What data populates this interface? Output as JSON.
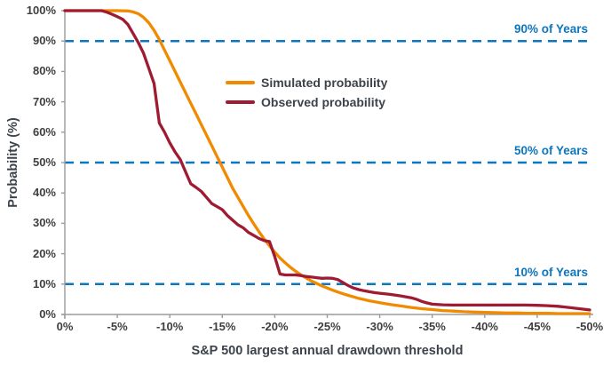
{
  "colors": {
    "simulated_orange": "#F18A00",
    "observed_red": "#9E1B32",
    "reference_blue": "#0E76BC",
    "axis_line_gray": "#9B9B9B",
    "tick_text": "#404040",
    "title_text": "#3C434B"
  },
  "chart_data": {
    "type": "line",
    "title": "",
    "xlabel": "S&P 500 largest annual drawdown threshold",
    "ylabel": "Probability (%)",
    "xlim": [
      0,
      -50
    ],
    "ylim": [
      0,
      100
    ],
    "grid": false,
    "legend_position": "upper-middle",
    "x_ticks": [
      "0%",
      "-5%",
      "-10%",
      "-15%",
      "-20%",
      "-25%",
      "-30%",
      "-35%",
      "-40%",
      "-45%",
      "-50%"
    ],
    "x_tick_values": [
      0,
      -5,
      -10,
      -15,
      -20,
      -25,
      -30,
      -35,
      -40,
      -45,
      -50
    ],
    "y_ticks": [
      "100%",
      "90%",
      "80%",
      "70%",
      "60%",
      "50%",
      "40%",
      "30%",
      "20%",
      "10%",
      "0%"
    ],
    "y_tick_values": [
      100,
      90,
      80,
      70,
      60,
      50,
      40,
      30,
      20,
      10,
      0
    ],
    "reference_lines": [
      {
        "value": 90,
        "label": "90% of Years"
      },
      {
        "value": 50,
        "label": "50% of Years"
      },
      {
        "value": 10,
        "label": "10% of Years"
      }
    ],
    "series": [
      {
        "name": "Simulated probability",
        "color": "#F18A00",
        "x": [
          0,
          -1,
          -2,
          -3,
          -4,
          -5,
          -6,
          -6.5,
          -7,
          -7.5,
          -8,
          -8.5,
          -9,
          -9.5,
          -10,
          -10.5,
          -11,
          -11.5,
          -12,
          -12.5,
          -13,
          -13.5,
          -14,
          -14.5,
          -15,
          -15.5,
          -16,
          -16.5,
          -17,
          -17.5,
          -18,
          -18.5,
          -19,
          -19.5,
          -20,
          -20.5,
          -21,
          -21.5,
          -22,
          -22.5,
          -23,
          -23.5,
          -24,
          -24.5,
          -25,
          -25.5,
          -26,
          -26.5,
          -27,
          -27.5,
          -28,
          -28.5,
          -29,
          -29.5,
          -30,
          -31,
          -32,
          -33,
          -34,
          -35,
          -36,
          -37,
          -38,
          -39,
          -40,
          -41,
          -42,
          -43,
          -44,
          -45,
          -46,
          -47,
          -48,
          -49,
          -50
        ],
        "y": [
          100,
          100,
          100,
          100,
          100,
          100,
          99.9,
          99.6,
          99,
          97.8,
          96,
          93.5,
          90.5,
          87,
          83.5,
          80,
          76.5,
          73,
          69.5,
          66,
          62.5,
          59,
          55.5,
          52,
          48.5,
          45,
          41.5,
          38.5,
          35.5,
          32.5,
          29.8,
          27.2,
          24.8,
          22.6,
          20.5,
          18.6,
          17,
          15.5,
          14.2,
          13,
          12,
          11,
          10.2,
          9.4,
          8.7,
          8,
          7.4,
          6.8,
          6.3,
          5.8,
          5.3,
          4.9,
          4.5,
          4.2,
          3.9,
          3.3,
          2.8,
          2.3,
          1.9,
          1.6,
          1.3,
          1.1,
          0.9,
          0.8,
          0.7,
          0.6,
          0.5,
          0.5,
          0.4,
          0.4,
          0.4,
          0.3,
          0.3,
          0.3,
          0.3
        ]
      },
      {
        "name": "Observed probability",
        "color": "#9E1B32",
        "x": [
          0,
          -1,
          -2,
          -3,
          -3.5,
          -4,
          -4.5,
          -5,
          -5.5,
          -6,
          -6.5,
          -7,
          -7.5,
          -8,
          -8.5,
          -9,
          -9.5,
          -10,
          -10.5,
          -11,
          -11.5,
          -12,
          -12.5,
          -13,
          -13.5,
          -14,
          -14.5,
          -15,
          -15.5,
          -16,
          -16.5,
          -17,
          -17.5,
          -18,
          -18.5,
          -19,
          -19.5,
          -20,
          -20.5,
          -21,
          -21.5,
          -22,
          -22.5,
          -23,
          -23.5,
          -24,
          -24.5,
          -25,
          -25.5,
          -26,
          -26.5,
          -27,
          -27.5,
          -28,
          -28.5,
          -29,
          -29.5,
          -30,
          -31,
          -32,
          -33,
          -33.5,
          -34,
          -34.5,
          -35,
          -36,
          -37,
          -38,
          -39,
          -40,
          -41,
          -42,
          -43,
          -44,
          -45,
          -46,
          -47,
          -48,
          -49,
          -50
        ],
        "y": [
          100,
          100,
          100,
          100,
          100,
          99.5,
          98.8,
          98,
          97.2,
          95.5,
          92.5,
          89.5,
          86,
          81,
          76,
          63,
          60,
          56.5,
          53.5,
          51,
          47,
          43,
          41.8,
          40.5,
          38.5,
          36.5,
          35.5,
          34.5,
          32.5,
          31,
          29.5,
          28.5,
          27,
          26,
          25,
          24.3,
          24,
          19,
          13.3,
          13,
          13,
          13,
          12.8,
          12.5,
          12.3,
          12.1,
          11.9,
          12,
          11.9,
          11.5,
          10.5,
          9.5,
          8.7,
          8.2,
          7.8,
          7.5,
          7.2,
          7,
          6.6,
          6.1,
          5.5,
          5,
          4.3,
          3.8,
          3.4,
          3.2,
          3.1,
          3.1,
          3.1,
          3.1,
          3.1,
          3.1,
          3.1,
          3.1,
          3,
          2.9,
          2.7,
          2.3,
          1.9,
          1.5
        ]
      }
    ]
  }
}
